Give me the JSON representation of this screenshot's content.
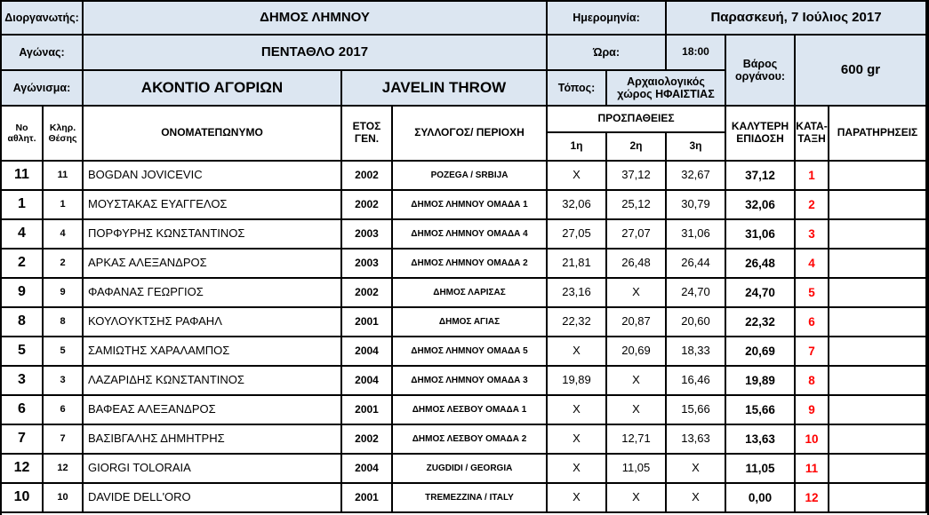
{
  "meta": {
    "organizer_label": "Διοργανωτής:",
    "organizer": "ΔΗΜΟΣ ΛΗΜΝΟΥ",
    "competition_label": "Αγώνας:",
    "competition": "ΠΕΝΤΑΘΛΟ 2017",
    "event_label": "Αγώνισμα:",
    "event_gr": "ΑΚΟΝΤΙΟ ΑΓΟΡΙΩΝ",
    "event_en": "JAVELIN THROW",
    "date_label": "Ημερομηνία:",
    "date": "Παρασκευή, 7 Ιούλιος 2017",
    "time_label": "Ώρα:",
    "time": "18:00",
    "venue_label": "Τόπος:",
    "venue": "Αρχαιολογικός χώρος ΗΦΑΙΣΤΙΑΣ",
    "weight_label": "Βάρος οργάνου:",
    "weight": "600 gr"
  },
  "table": {
    "headers": {
      "no": "Νο αθλητ.",
      "draw": "Κληρ. Θέσης",
      "name": "ΟΝΟΜΑΤΕΠΩΝΥΜΟ",
      "year": "ΕΤΟΣ ΓΕΝ.",
      "club": "ΣΥΛΛΟΓΟΣ/ ΠΕΡΙΟΧΗ",
      "attempts": "ΠΡΟΣΠΑΘΕΙΕΣ",
      "attempt1": "1η",
      "attempt2": "2η",
      "attempt3": "3η",
      "best": "ΚΑΛΥΤΕΡΗ ΕΠΙΔΟΣΗ",
      "rank": "ΚΑΤΑ- ΤΑΞΗ",
      "remarks": "ΠΑΡΑΤΗΡΗΣΕΙΣ"
    },
    "rows": [
      {
        "no": "11",
        "draw": "11",
        "name": "BOGDAN JOVICEVIC",
        "year": "2002",
        "club": "POZEGA / SRBIJA",
        "a1": "X",
        "a2": "37,12",
        "a3": "32,67",
        "best": "37,12",
        "rank": "1",
        "remarks": ""
      },
      {
        "no": "1",
        "draw": "1",
        "name": "ΜΟΥΣΤΑΚΑΣ ΕΥΑΓΓΕΛΟΣ",
        "year": "2002",
        "club": "ΔΗΜΟΣ ΛΗΜΝΟΥ ΟΜΑΔΑ 1",
        "a1": "32,06",
        "a2": "25,12",
        "a3": "30,79",
        "best": "32,06",
        "rank": "2",
        "remarks": ""
      },
      {
        "no": "4",
        "draw": "4",
        "name": "ΠΟΡΦΥΡΗΣ ΚΩΝΣΤΑΝΤΙΝΟΣ",
        "year": "2003",
        "club": "ΔΗΜΟΣ ΛΗΜΝΟΥ ΟΜΑΔΑ 4",
        "a1": "27,05",
        "a2": "27,07",
        "a3": "31,06",
        "best": "31,06",
        "rank": "3",
        "remarks": ""
      },
      {
        "no": "2",
        "draw": "2",
        "name": "ΑΡΚΑΣ ΑΛΕΞΑΝΔΡΟΣ",
        "year": "2003",
        "club": "ΔΗΜΟΣ ΛΗΜΝΟΥ ΟΜΑΔΑ 2",
        "a1": "21,81",
        "a2": "26,48",
        "a3": "26,44",
        "best": "26,48",
        "rank": "4",
        "remarks": ""
      },
      {
        "no": "9",
        "draw": "9",
        "name": "ΦΑΦΑΝΑΣ ΓΕΩΡΓΙΟΣ",
        "year": "2002",
        "club": "ΔΗΜΟΣ ΛΑΡΙΣΑΣ",
        "a1": "23,16",
        "a2": "X",
        "a3": "24,70",
        "best": "24,70",
        "rank": "5",
        "remarks": ""
      },
      {
        "no": "8",
        "draw": "8",
        "name": "ΚΟΥΛΟΥΚΤΣΗΣ ΡΑΦΑΗΛ",
        "year": "2001",
        "club": "ΔΗΜΟΣ ΑΓΙΑΣ",
        "a1": "22,32",
        "a2": "20,87",
        "a3": "20,60",
        "best": "22,32",
        "rank": "6",
        "remarks": ""
      },
      {
        "no": "5",
        "draw": "5",
        "name": "ΣΑΜΙΩΤΗΣ ΧΑΡΑΛΑΜΠΟΣ",
        "year": "2004",
        "club": "ΔΗΜΟΣ ΛΗΜΝΟΥ ΟΜΑΔΑ 5",
        "a1": "X",
        "a2": "20,69",
        "a3": "18,33",
        "best": "20,69",
        "rank": "7",
        "remarks": ""
      },
      {
        "no": "3",
        "draw": "3",
        "name": "ΛΑΖΑΡΙΔΗΣ ΚΩΝΣΤΑΝΤΙΝΟΣ",
        "year": "2004",
        "club": "ΔΗΜΟΣ ΛΗΜΝΟΥ ΟΜΑΔΑ 3",
        "a1": "19,89",
        "a2": "X",
        "a3": "16,46",
        "best": "19,89",
        "rank": "8",
        "remarks": ""
      },
      {
        "no": "6",
        "draw": "6",
        "name": "ΒΑΦΕΑΣ ΑΛΕΞΑΝΔΡΟΣ",
        "year": "2001",
        "club": "ΔΗΜΟΣ ΛΕΣΒΟΥ ΟΜΑΔΑ 1",
        "a1": "X",
        "a2": "X",
        "a3": "15,66",
        "best": "15,66",
        "rank": "9",
        "remarks": ""
      },
      {
        "no": "7",
        "draw": "7",
        "name": "ΒΑΣΙΒΓΑΛΗΣ ΔΗΜΗΤΡΗΣ",
        "year": "2002",
        "club": "ΔΗΜΟΣ ΛΕΣΒΟΥ ΟΜΑΔΑ 2",
        "a1": "X",
        "a2": "12,71",
        "a3": "13,63",
        "best": "13,63",
        "rank": "10",
        "remarks": ""
      },
      {
        "no": "12",
        "draw": "12",
        "name": "GIORGI TOLORAIA",
        "year": "2004",
        "club": "ZUGDIDI / GEORGIA",
        "a1": "X",
        "a2": "11,05",
        "a3": "X",
        "best": "11,05",
        "rank": "11",
        "remarks": ""
      },
      {
        "no": "10",
        "draw": "10",
        "name": "DAVIDE DELL'ORO",
        "year": "2001",
        "club": "TREMEZZINA / ITALY",
        "a1": "X",
        "a2": "X",
        "a3": "X",
        "best": "0,00",
        "rank": "12",
        "remarks": ""
      }
    ]
  },
  "colors": {
    "header_bg": "#dce6f1",
    "rank_color": "#ff0000",
    "border": "#000000"
  }
}
